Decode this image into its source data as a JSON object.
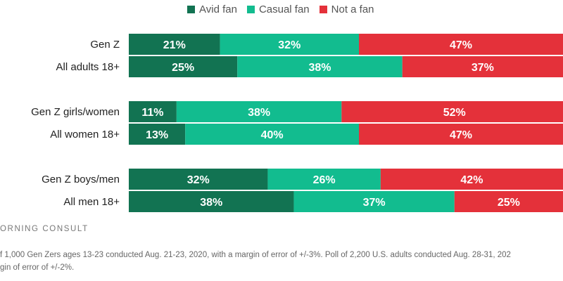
{
  "legend": {
    "items": [
      {
        "label": "Avid fan",
        "color": "#127352"
      },
      {
        "label": "Casual fan",
        "color": "#12bc8f"
      },
      {
        "label": "Not a fan",
        "color": "#e4313a"
      }
    ]
  },
  "brand": "ORNING CONSULT",
  "footnote": {
    "line1": "f 1,000 Gen Zers ages 13-23 conducted Aug. 21-23, 2020, with a margin of error of +/-3%. Poll of 2,200 U.S. adults conducted Aug. 28-31, 202",
    "line2": "gin of error of +/-2%."
  },
  "chart_data": {
    "type": "bar",
    "orientation": "horizontal",
    "stacked": true,
    "xlim": [
      0,
      100
    ],
    "grid": false,
    "legend_position": "top",
    "categories": [
      "Gen Z",
      "All adults 18+",
      "Gen Z girls/women",
      "All women 18+",
      "Gen Z boys/men",
      "All men 18+"
    ],
    "series": [
      {
        "name": "Avid fan",
        "color": "#127352",
        "values": [
          21,
          25,
          11,
          13,
          32,
          38
        ],
        "labels": [
          "21%",
          "25%",
          "11%",
          "13%",
          "32%",
          "38%"
        ]
      },
      {
        "name": "Casual fan",
        "color": "#12bc8f",
        "values": [
          32,
          38,
          38,
          40,
          26,
          37
        ],
        "labels": [
          "32%",
          "38%",
          "38%",
          "40%",
          "26%",
          "37%"
        ]
      },
      {
        "name": "Not a fan",
        "color": "#e4313a",
        "values": [
          47,
          37,
          52,
          47,
          42,
          25
        ],
        "labels": [
          "47%",
          "37%",
          "52%",
          "47%",
          "42%",
          "25%"
        ]
      }
    ]
  }
}
